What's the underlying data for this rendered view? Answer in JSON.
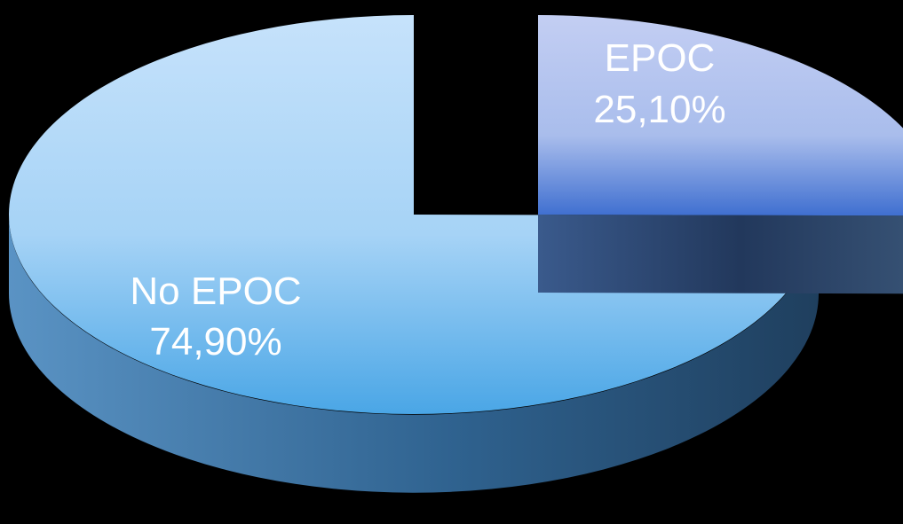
{
  "chart_data": {
    "type": "pie",
    "style": "3d-exploded",
    "slices": [
      {
        "label": "EPOC",
        "value_text": "25,10%",
        "value": 25.1,
        "color": "#b9c8f0",
        "side_color": "#2b4a7a",
        "exploded": true
      },
      {
        "label": "No EPOC",
        "value_text": "74,90%",
        "value": 74.9,
        "color": "#a9d4f7",
        "side_color": "#2f6a9e",
        "exploded": false
      }
    ]
  }
}
